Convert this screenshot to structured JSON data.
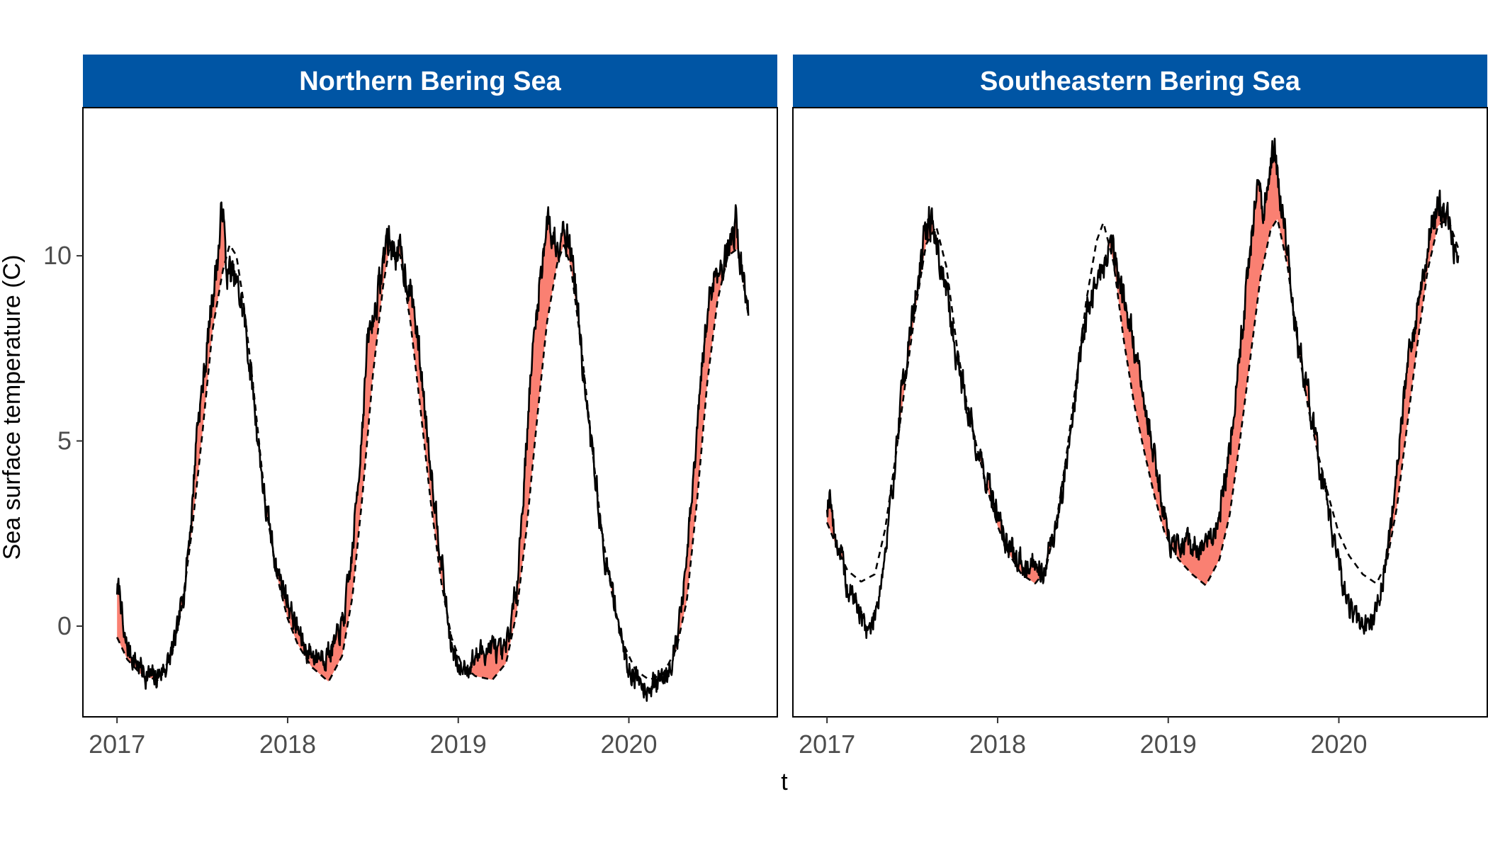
{
  "chart_data": {
    "type": "line",
    "xlabel": "t",
    "ylabel": "Sea surface temperature (C)",
    "x_range": [
      2016.8,
      2020.87
    ],
    "y_range": [
      -2.45,
      14.0
    ],
    "x_ticks": [
      2017,
      2018,
      2019,
      2020
    ],
    "y_ticks": [
      0,
      5,
      10
    ],
    "grid": false,
    "legend": "none",
    "colors": {
      "strip_bg": "#0055A4",
      "strip_text": "#ffffff",
      "fill_anomaly": "#FA8072",
      "line": "#000000",
      "axis_text": "#4d4d4d"
    },
    "series_meaning": {
      "solid": "observed temperature",
      "dashed": "climatology",
      "shaded": "observed above climatology"
    },
    "panels": [
      {
        "title": "Northern Bering Sea",
        "seed": 7,
        "obs_keypoints": [
          [
            2017.0,
            1.0
          ],
          [
            2017.02,
            0.9
          ],
          [
            2017.04,
            -0.4
          ],
          [
            2017.1,
            -0.9
          ],
          [
            2017.17,
            -1.3
          ],
          [
            2017.22,
            -1.45
          ],
          [
            2017.3,
            -1.0
          ],
          [
            2017.35,
            -0.3
          ],
          [
            2017.4,
            1.3
          ],
          [
            2017.44,
            3.2
          ],
          [
            2017.47,
            5.5
          ],
          [
            2017.5,
            6.4
          ],
          [
            2017.53,
            7.6
          ],
          [
            2017.56,
            9.0
          ],
          [
            2017.58,
            9.6
          ],
          [
            2017.6,
            10.4
          ],
          [
            2017.62,
            11.5
          ],
          [
            2017.64,
            9.5
          ],
          [
            2017.66,
            9.6
          ],
          [
            2017.7,
            9.2
          ],
          [
            2017.74,
            8.5
          ],
          [
            2017.8,
            6.2
          ],
          [
            2017.87,
            3.2
          ],
          [
            2017.94,
            1.5
          ],
          [
            2018.0,
            0.7
          ],
          [
            2018.05,
            0.0
          ],
          [
            2018.1,
            -0.6
          ],
          [
            2018.16,
            -0.8
          ],
          [
            2018.22,
            -0.75
          ],
          [
            2018.28,
            -0.5
          ],
          [
            2018.33,
            0.2
          ],
          [
            2018.38,
            2.0
          ],
          [
            2018.43,
            5.0
          ],
          [
            2018.47,
            7.7
          ],
          [
            2018.51,
            8.5
          ],
          [
            2018.55,
            9.5
          ],
          [
            2018.58,
            10.5
          ],
          [
            2018.62,
            10.2
          ],
          [
            2018.66,
            10.0
          ],
          [
            2018.7,
            9.4
          ],
          [
            2018.74,
            8.6
          ],
          [
            2018.78,
            7.0
          ],
          [
            2018.82,
            5.2
          ],
          [
            2018.86,
            3.5
          ],
          [
            2018.9,
            1.9
          ],
          [
            2018.93,
            0.5
          ],
          [
            2018.96,
            -0.6
          ],
          [
            2019.0,
            -1.2
          ],
          [
            2019.06,
            -1.05
          ],
          [
            2019.1,
            -0.85
          ],
          [
            2019.15,
            -0.65
          ],
          [
            2019.2,
            -0.55
          ],
          [
            2019.26,
            -0.9
          ],
          [
            2019.3,
            -0.2
          ],
          [
            2019.34,
            1.0
          ],
          [
            2019.38,
            3.5
          ],
          [
            2019.42,
            6.5
          ],
          [
            2019.46,
            8.5
          ],
          [
            2019.49,
            9.8
          ],
          [
            2019.52,
            11.0
          ],
          [
            2019.55,
            10.6
          ],
          [
            2019.58,
            10.3
          ],
          [
            2019.61,
            10.9
          ],
          [
            2019.64,
            10.6
          ],
          [
            2019.68,
            9.6
          ],
          [
            2019.72,
            7.5
          ],
          [
            2019.76,
            5.5
          ],
          [
            2019.8,
            4.3
          ],
          [
            2019.84,
            2.4
          ],
          [
            2019.88,
            1.3
          ],
          [
            2019.92,
            0.7
          ],
          [
            2019.96,
            -0.5
          ],
          [
            2020.0,
            -1.1
          ],
          [
            2020.06,
            -1.45
          ],
          [
            2020.1,
            -1.6
          ],
          [
            2020.16,
            -1.55
          ],
          [
            2020.22,
            -1.3
          ],
          [
            2020.28,
            -0.4
          ],
          [
            2020.33,
            1.3
          ],
          [
            2020.38,
            4.0
          ],
          [
            2020.43,
            7.0
          ],
          [
            2020.47,
            8.8
          ],
          [
            2020.5,
            9.5
          ],
          [
            2020.55,
            9.8
          ],
          [
            2020.59,
            10.3
          ],
          [
            2020.63,
            11.0
          ],
          [
            2020.66,
            9.6
          ],
          [
            2020.7,
            8.7
          ]
        ],
        "clim_keypoints": [
          [
            2017.0,
            -0.3
          ],
          [
            2017.06,
            -0.9
          ],
          [
            2017.15,
            -1.35
          ],
          [
            2017.24,
            -1.45
          ],
          [
            2017.32,
            -0.8
          ],
          [
            2017.38,
            0.5
          ],
          [
            2017.44,
            2.6
          ],
          [
            2017.5,
            5.2
          ],
          [
            2017.56,
            8.0
          ],
          [
            2017.62,
            9.6
          ],
          [
            2017.66,
            10.3
          ],
          [
            2017.7,
            10.0
          ],
          [
            2017.74,
            8.8
          ],
          [
            2017.8,
            6.4
          ],
          [
            2017.87,
            3.3
          ],
          [
            2017.94,
            1.3
          ],
          [
            2018.0,
            0.2
          ],
          [
            2018.06,
            -0.5
          ],
          [
            2018.14,
            -1.1
          ],
          [
            2018.24,
            -1.5
          ],
          [
            2018.32,
            -0.8
          ],
          [
            2018.38,
            0.8
          ],
          [
            2018.44,
            3.6
          ],
          [
            2018.5,
            6.8
          ],
          [
            2018.56,
            9.2
          ],
          [
            2018.6,
            10.3
          ],
          [
            2018.66,
            10.0
          ],
          [
            2018.72,
            8.2
          ],
          [
            2018.78,
            5.8
          ],
          [
            2018.84,
            3.3
          ],
          [
            2018.9,
            1.2
          ],
          [
            2018.96,
            -0.3
          ],
          [
            2019.02,
            -1.05
          ],
          [
            2019.1,
            -1.35
          ],
          [
            2019.2,
            -1.45
          ],
          [
            2019.28,
            -1.0
          ],
          [
            2019.34,
            0.3
          ],
          [
            2019.4,
            2.6
          ],
          [
            2019.46,
            5.5
          ],
          [
            2019.52,
            8.2
          ],
          [
            2019.58,
            9.8
          ],
          [
            2019.62,
            10.3
          ],
          [
            2019.66,
            9.7
          ],
          [
            2019.72,
            7.6
          ],
          [
            2019.78,
            5.0
          ],
          [
            2019.84,
            2.6
          ],
          [
            2019.9,
            0.9
          ],
          [
            2019.96,
            -0.4
          ],
          [
            2020.04,
            -1.2
          ],
          [
            2020.12,
            -1.45
          ],
          [
            2020.2,
            -1.3
          ],
          [
            2020.28,
            -0.6
          ],
          [
            2020.34,
            0.7
          ],
          [
            2020.4,
            3.4
          ],
          [
            2020.46,
            6.6
          ],
          [
            2020.52,
            8.8
          ],
          [
            2020.58,
            10.0
          ],
          [
            2020.64,
            10.2
          ],
          [
            2020.7,
            8.4
          ]
        ]
      },
      {
        "title": "Southeastern Bering Sea",
        "seed": 19,
        "obs_keypoints": [
          [
            2017.0,
            3.3
          ],
          [
            2017.02,
            3.7
          ],
          [
            2017.04,
            2.5
          ],
          [
            2017.08,
            2.0
          ],
          [
            2017.12,
            0.9
          ],
          [
            2017.16,
            0.8
          ],
          [
            2017.2,
            0.2
          ],
          [
            2017.23,
            0.0
          ],
          [
            2017.26,
            -0.1
          ],
          [
            2017.3,
            0.8
          ],
          [
            2017.35,
            2.2
          ],
          [
            2017.4,
            4.5
          ],
          [
            2017.45,
            6.8
          ],
          [
            2017.5,
            8.3
          ],
          [
            2017.55,
            9.8
          ],
          [
            2017.6,
            11.1
          ],
          [
            2017.64,
            10.4
          ],
          [
            2017.7,
            9.0
          ],
          [
            2017.76,
            7.3
          ],
          [
            2017.82,
            6.0
          ],
          [
            2017.88,
            4.8
          ],
          [
            2017.94,
            3.9
          ],
          [
            2018.0,
            3.0
          ],
          [
            2018.04,
            2.4
          ],
          [
            2018.1,
            1.8
          ],
          [
            2018.16,
            1.7
          ],
          [
            2018.22,
            1.8
          ],
          [
            2018.26,
            1.5
          ],
          [
            2018.3,
            2.0
          ],
          [
            2018.36,
            3.0
          ],
          [
            2018.42,
            5.0
          ],
          [
            2018.48,
            7.2
          ],
          [
            2018.54,
            8.8
          ],
          [
            2018.6,
            9.5
          ],
          [
            2018.66,
            10.3
          ],
          [
            2018.7,
            9.8
          ],
          [
            2018.76,
            8.5
          ],
          [
            2018.82,
            7.0
          ],
          [
            2018.88,
            5.6
          ],
          [
            2018.94,
            4.1
          ],
          [
            2019.0,
            2.4
          ],
          [
            2019.06,
            2.0
          ],
          [
            2019.12,
            2.2
          ],
          [
            2019.2,
            2.0
          ],
          [
            2019.26,
            2.5
          ],
          [
            2019.3,
            3.0
          ],
          [
            2019.35,
            4.5
          ],
          [
            2019.4,
            6.5
          ],
          [
            2019.45,
            8.8
          ],
          [
            2019.5,
            11.0
          ],
          [
            2019.52,
            12.0
          ],
          [
            2019.55,
            11.2
          ],
          [
            2019.59,
            11.8
          ],
          [
            2019.62,
            12.8
          ],
          [
            2019.66,
            11.6
          ],
          [
            2019.7,
            10.0
          ],
          [
            2019.76,
            7.5
          ],
          [
            2019.82,
            6.3
          ],
          [
            2019.88,
            4.5
          ],
          [
            2019.94,
            3.0
          ],
          [
            2020.0,
            1.6
          ],
          [
            2020.05,
            0.6
          ],
          [
            2020.1,
            0.2
          ],
          [
            2020.14,
            0.0
          ],
          [
            2020.18,
            -0.05
          ],
          [
            2020.22,
            0.4
          ],
          [
            2020.28,
            1.8
          ],
          [
            2020.34,
            4.2
          ],
          [
            2020.4,
            7.0
          ],
          [
            2020.45,
            8.2
          ],
          [
            2020.5,
            9.8
          ],
          [
            2020.55,
            11.0
          ],
          [
            2020.6,
            11.4
          ],
          [
            2020.64,
            10.8
          ],
          [
            2020.7,
            9.6
          ]
        ],
        "clim_keypoints": [
          [
            2017.0,
            2.8
          ],
          [
            2017.06,
            2.1
          ],
          [
            2017.12,
            1.5
          ],
          [
            2017.2,
            1.2
          ],
          [
            2017.28,
            1.4
          ],
          [
            2017.34,
            2.6
          ],
          [
            2017.4,
            4.5
          ],
          [
            2017.46,
            6.6
          ],
          [
            2017.52,
            8.6
          ],
          [
            2017.58,
            10.3
          ],
          [
            2017.64,
            10.8
          ],
          [
            2017.7,
            9.7
          ],
          [
            2017.76,
            7.6
          ],
          [
            2017.82,
            6.0
          ],
          [
            2017.88,
            4.8
          ],
          [
            2017.94,
            3.7
          ],
          [
            2018.0,
            2.7
          ],
          [
            2018.06,
            2.0
          ],
          [
            2018.14,
            1.4
          ],
          [
            2018.22,
            1.15
          ],
          [
            2018.28,
            1.5
          ],
          [
            2018.34,
            2.7
          ],
          [
            2018.4,
            4.5
          ],
          [
            2018.46,
            6.6
          ],
          [
            2018.52,
            8.8
          ],
          [
            2018.58,
            10.4
          ],
          [
            2018.62,
            10.9
          ],
          [
            2018.68,
            9.8
          ],
          [
            2018.74,
            7.7
          ],
          [
            2018.8,
            6.0
          ],
          [
            2018.86,
            4.7
          ],
          [
            2018.92,
            3.5
          ],
          [
            2018.98,
            2.5
          ],
          [
            2019.06,
            1.8
          ],
          [
            2019.14,
            1.4
          ],
          [
            2019.22,
            1.1
          ],
          [
            2019.3,
            1.8
          ],
          [
            2019.36,
            3.0
          ],
          [
            2019.42,
            5.0
          ],
          [
            2019.48,
            7.2
          ],
          [
            2019.54,
            9.4
          ],
          [
            2019.6,
            10.7
          ],
          [
            2019.64,
            11.0
          ],
          [
            2019.7,
            9.7
          ],
          [
            2019.76,
            7.6
          ],
          [
            2019.82,
            5.9
          ],
          [
            2019.88,
            4.6
          ],
          [
            2019.94,
            3.5
          ],
          [
            2020.0,
            2.5
          ],
          [
            2020.06,
            1.9
          ],
          [
            2020.14,
            1.4
          ],
          [
            2020.22,
            1.15
          ],
          [
            2020.28,
            1.7
          ],
          [
            2020.34,
            3.2
          ],
          [
            2020.4,
            5.4
          ],
          [
            2020.46,
            7.6
          ],
          [
            2020.52,
            9.6
          ],
          [
            2020.58,
            10.8
          ],
          [
            2020.64,
            11.0
          ],
          [
            2020.7,
            10.2
          ]
        ]
      }
    ]
  }
}
